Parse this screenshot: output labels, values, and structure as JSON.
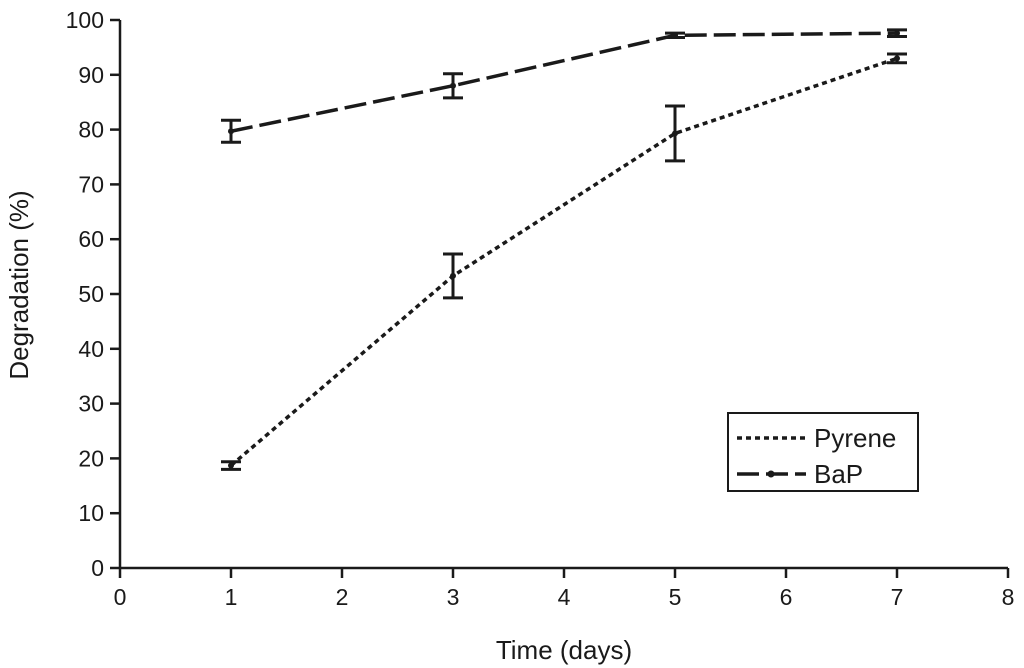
{
  "chart_data": {
    "type": "line",
    "xlabel": "Time (days)",
    "ylabel": "Degradation (%)",
    "xlim": [
      0,
      8
    ],
    "ylim": [
      0,
      100
    ],
    "x_ticks": [
      0,
      1,
      2,
      3,
      4,
      5,
      6,
      7,
      8
    ],
    "y_ticks": [
      0,
      10,
      20,
      30,
      40,
      50,
      60,
      70,
      80,
      90,
      100
    ],
    "grid": false,
    "legend_position": "bottom-right",
    "x": [
      1,
      3,
      5,
      7
    ],
    "series": [
      {
        "name": "Pyrene",
        "style": "dotted",
        "color": "#1a1a1a",
        "values": [
          18.7,
          53.3,
          79.3,
          93.0
        ],
        "errors": [
          0.7,
          4.0,
          5.0,
          0.8
        ]
      },
      {
        "name": "BaP",
        "style": "dashed",
        "color": "#1a1a1a",
        "values": [
          79.7,
          88.0,
          97.2,
          97.6
        ],
        "errors": [
          2.0,
          2.2,
          0.4,
          0.6
        ]
      }
    ]
  }
}
